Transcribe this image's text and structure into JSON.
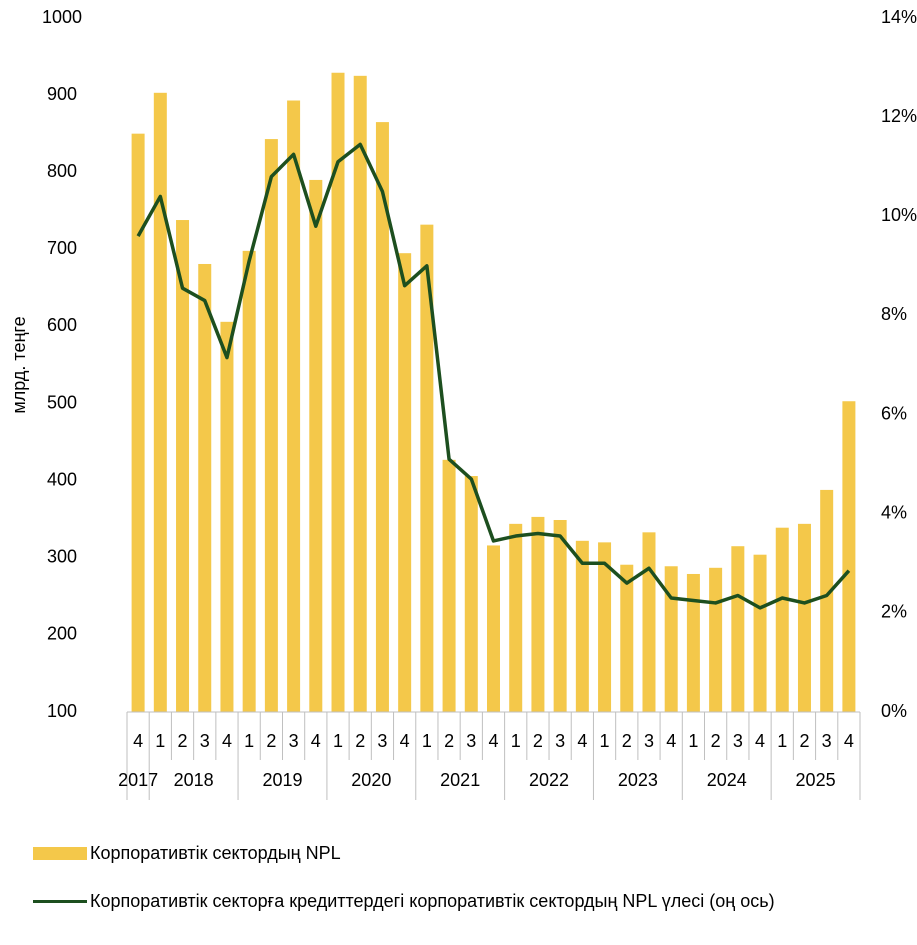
{
  "chart_data": {
    "type": "bar_line",
    "y_label": "млрд. теңге",
    "categories": [
      "4",
      "1",
      "2",
      "3",
      "4",
      "1",
      "2",
      "3",
      "4",
      "1",
      "2",
      "3",
      "4",
      "1",
      "2",
      "3",
      "4",
      "1",
      "2",
      "3",
      "4",
      "1",
      "2",
      "3",
      "4",
      "1",
      "2",
      "3",
      "4",
      "1",
      "2",
      "3",
      "4"
    ],
    "groups": [
      {
        "label": "2017",
        "count": 1
      },
      {
        "label": "2018",
        "count": 4
      },
      {
        "label": "2019",
        "count": 4
      },
      {
        "label": "2020",
        "count": 4
      },
      {
        "label": "2021",
        "count": 4
      },
      {
        "label": "2022",
        "count": 4
      },
      {
        "label": "2023",
        "count": 4
      },
      {
        "label": "2024",
        "count": 4
      },
      {
        "label": "2025",
        "count": 4
      }
    ],
    "series": [
      {
        "name": "Корпоративтік сектордың NPL",
        "type": "bar",
        "color": "#f4c84a",
        "values": [
          850,
          903,
          738,
          681,
          606,
          698,
          843,
          893,
          790,
          929,
          925,
          865,
          695,
          732,
          427,
          406,
          316,
          344,
          353,
          349,
          322,
          320,
          291,
          333,
          289,
          279,
          287,
          315,
          304,
          339,
          344,
          388,
          503
        ]
      },
      {
        "name": "Корпоративтік секторға кредиттердегі корпоративтік сектордың NPL үлесі (оң ось)",
        "type": "line",
        "axis": "y2",
        "color": "#1d4f1f",
        "values": [
          9.6,
          10.4,
          8.55,
          8.3,
          7.15,
          9.1,
          10.8,
          11.25,
          9.8,
          11.1,
          11.45,
          10.5,
          8.6,
          9.0,
          5.1,
          4.7,
          3.45,
          3.55,
          3.6,
          3.55,
          3.0,
          3.0,
          2.6,
          2.9,
          2.3,
          2.25,
          2.2,
          2.35,
          2.1,
          2.3,
          2.2,
          2.35,
          2.85
        ]
      }
    ],
    "ylim": [
      100,
      1000
    ],
    "yticks": [
      100,
      200,
      300,
      400,
      500,
      600,
      700,
      800,
      900,
      1000
    ],
    "y2lim": [
      0,
      14
    ],
    "y2ticks": [
      {
        "value": 0,
        "label": "0%"
      },
      {
        "value": 2,
        "label": "2%"
      },
      {
        "value": 4,
        "label": "4%"
      },
      {
        "value": 6,
        "label": "6%"
      },
      {
        "value": 8,
        "label": "8%"
      },
      {
        "value": 10,
        "label": "10%"
      },
      {
        "value": 12,
        "label": "12%"
      },
      {
        "value": 14,
        "label": "14%"
      }
    ],
    "legend": "bottom",
    "grid": false
  }
}
